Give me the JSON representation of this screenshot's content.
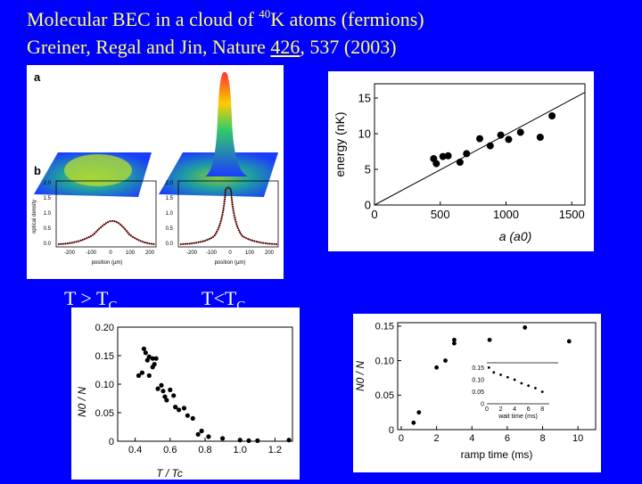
{
  "title": {
    "line1_prefix": "Molecular BEC in a cloud of ",
    "line1_sup": "40",
    "line1_suffix": "K atoms (fermions)",
    "line2_prefix": "Greiner, Regal and Jin, Nature ",
    "line2_volume": "426",
    "line2_suffix": ", 537 (2003)"
  },
  "labels": {
    "above_T": "T > T",
    "above_sub": "C",
    "below_T": "T<T",
    "below_sub": "C"
  },
  "panel_ab": {
    "label_a": "a",
    "label_b": "b",
    "ylabel": "optical density",
    "xlabel": "position (µm)",
    "yticks": [
      "2.0",
      "1.5",
      "1.0",
      "0.5",
      "0.0"
    ],
    "xticks": [
      "-200",
      "-100",
      "0",
      "100",
      "200"
    ]
  },
  "chart_data": [
    {
      "type": "scatter",
      "title": "",
      "xlabel": "a (a0)",
      "ylabel": "energy (nK)",
      "xlim": [
        0,
        1600
      ],
      "ylim": [
        0,
        17
      ],
      "xticks": [
        "0",
        "500",
        "1000",
        "1500"
      ],
      "yticks": [
        "0",
        "5",
        "10",
        "15"
      ],
      "x": [
        450,
        470,
        520,
        560,
        650,
        700,
        800,
        880,
        960,
        1020,
        1110,
        1260,
        1350
      ],
      "y": [
        6.5,
        5.8,
        6.8,
        6.9,
        6.0,
        7.2,
        9.3,
        8.3,
        9.8,
        9.2,
        10.2,
        9.5,
        12.5
      ],
      "fit_line": {
        "x": [
          0,
          1600
        ],
        "y": [
          0,
          15.8
        ]
      },
      "fit_extra": [
        {
          "x": 1330,
          "y": 12.6
        }
      ]
    },
    {
      "type": "scatter",
      "title": "",
      "xlabel": "T / Tc",
      "ylabel": "N0 / N",
      "xlim": [
        0.3,
        1.3
      ],
      "ylim": [
        0,
        0.2
      ],
      "xticks": [
        "0.4",
        "0.6",
        "0.8",
        "1.0",
        "1.2"
      ],
      "yticks": [
        "0",
        "0.05",
        "0.10",
        "0.15",
        "0.20"
      ],
      "x": [
        0.42,
        0.44,
        0.45,
        0.46,
        0.47,
        0.48,
        0.48,
        0.5,
        0.5,
        0.51,
        0.52,
        0.53,
        0.55,
        0.56,
        0.57,
        0.58,
        0.6,
        0.62,
        0.63,
        0.65,
        0.68,
        0.7,
        0.73,
        0.76,
        0.78,
        0.82,
        0.9,
        1.0,
        1.05,
        1.1,
        1.28
      ],
      "y": [
        0.115,
        0.12,
        0.162,
        0.155,
        0.142,
        0.148,
        0.115,
        0.13,
        0.145,
        0.135,
        0.145,
        0.092,
        0.098,
        0.088,
        0.078,
        0.072,
        0.09,
        0.08,
        0.06,
        0.055,
        0.058,
        0.045,
        0.04,
        0.012,
        0.018,
        0.008,
        0.005,
        0.002,
        0.001,
        0.001,
        0.002
      ]
    },
    {
      "type": "scatter",
      "title": "",
      "xlabel": "ramp time (ms)",
      "ylabel": "N0 / N",
      "xlim": [
        -0.2,
        11
      ],
      "ylim": [
        0,
        0.155
      ],
      "xticks": [
        "0",
        "2",
        "4",
        "6",
        "8",
        "10"
      ],
      "yticks": [
        "0",
        "0.05",
        "0.10",
        "0.15"
      ],
      "x": [
        0.7,
        1.0,
        2.0,
        2.5,
        3.0,
        3.0,
        5.0,
        7.0,
        9.5
      ],
      "y": [
        0.01,
        0.025,
        0.09,
        0.1,
        0.125,
        0.13,
        0.13,
        0.148,
        0.128
      ],
      "inset": {
        "xlabel": "wait time (ms)",
        "xticks": [
          "0",
          "2",
          "4",
          "6",
          "8"
        ],
        "yticks": [
          "0.15",
          "0.10",
          "0.05",
          "0"
        ],
        "xlim": [
          0,
          9
        ],
        "ylim": [
          0,
          0.17
        ],
        "x": [
          0.3,
          1,
          2,
          3,
          4,
          5,
          6,
          7,
          8
        ],
        "y": [
          0.15,
          0.13,
          0.12,
          0.11,
          0.1,
          0.085,
          0.075,
          0.065,
          0.05
        ]
      }
    }
  ]
}
